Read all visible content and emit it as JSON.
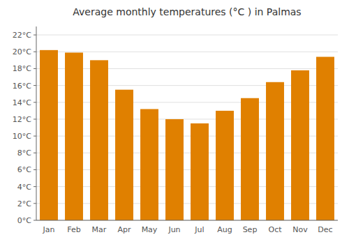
{
  "chart_data": {
    "type": "bar",
    "title": "Average monthly temperatures (°C ) in Palmas",
    "categories": [
      "Jan",
      "Feb",
      "Mar",
      "Apr",
      "May",
      "Jun",
      "Jul",
      "Aug",
      "Sep",
      "Oct",
      "Nov",
      "Dec"
    ],
    "values": [
      20.2,
      19.9,
      19.0,
      15.5,
      13.2,
      12.0,
      11.5,
      13.0,
      14.5,
      16.4,
      17.8,
      19.4
    ],
    "color": "#E08000",
    "ylim": [
      0,
      23
    ],
    "yticks": [
      {
        "value": 0,
        "label": "0°C"
      },
      {
        "value": 2,
        "label": "2°C"
      },
      {
        "value": 4,
        "label": "4°C"
      },
      {
        "value": 6,
        "label": "6°C"
      },
      {
        "value": 8,
        "label": "8°C"
      },
      {
        "value": 10,
        "label": "10°C"
      },
      {
        "value": 12,
        "label": "12°C"
      },
      {
        "value": 14,
        "label": "14°C"
      },
      {
        "value": 16,
        "label": "16°C"
      },
      {
        "value": 18,
        "label": "18°C"
      },
      {
        "value": 20,
        "label": "20°C"
      },
      {
        "value": 22,
        "label": "22°C"
      }
    ],
    "grid": true
  }
}
